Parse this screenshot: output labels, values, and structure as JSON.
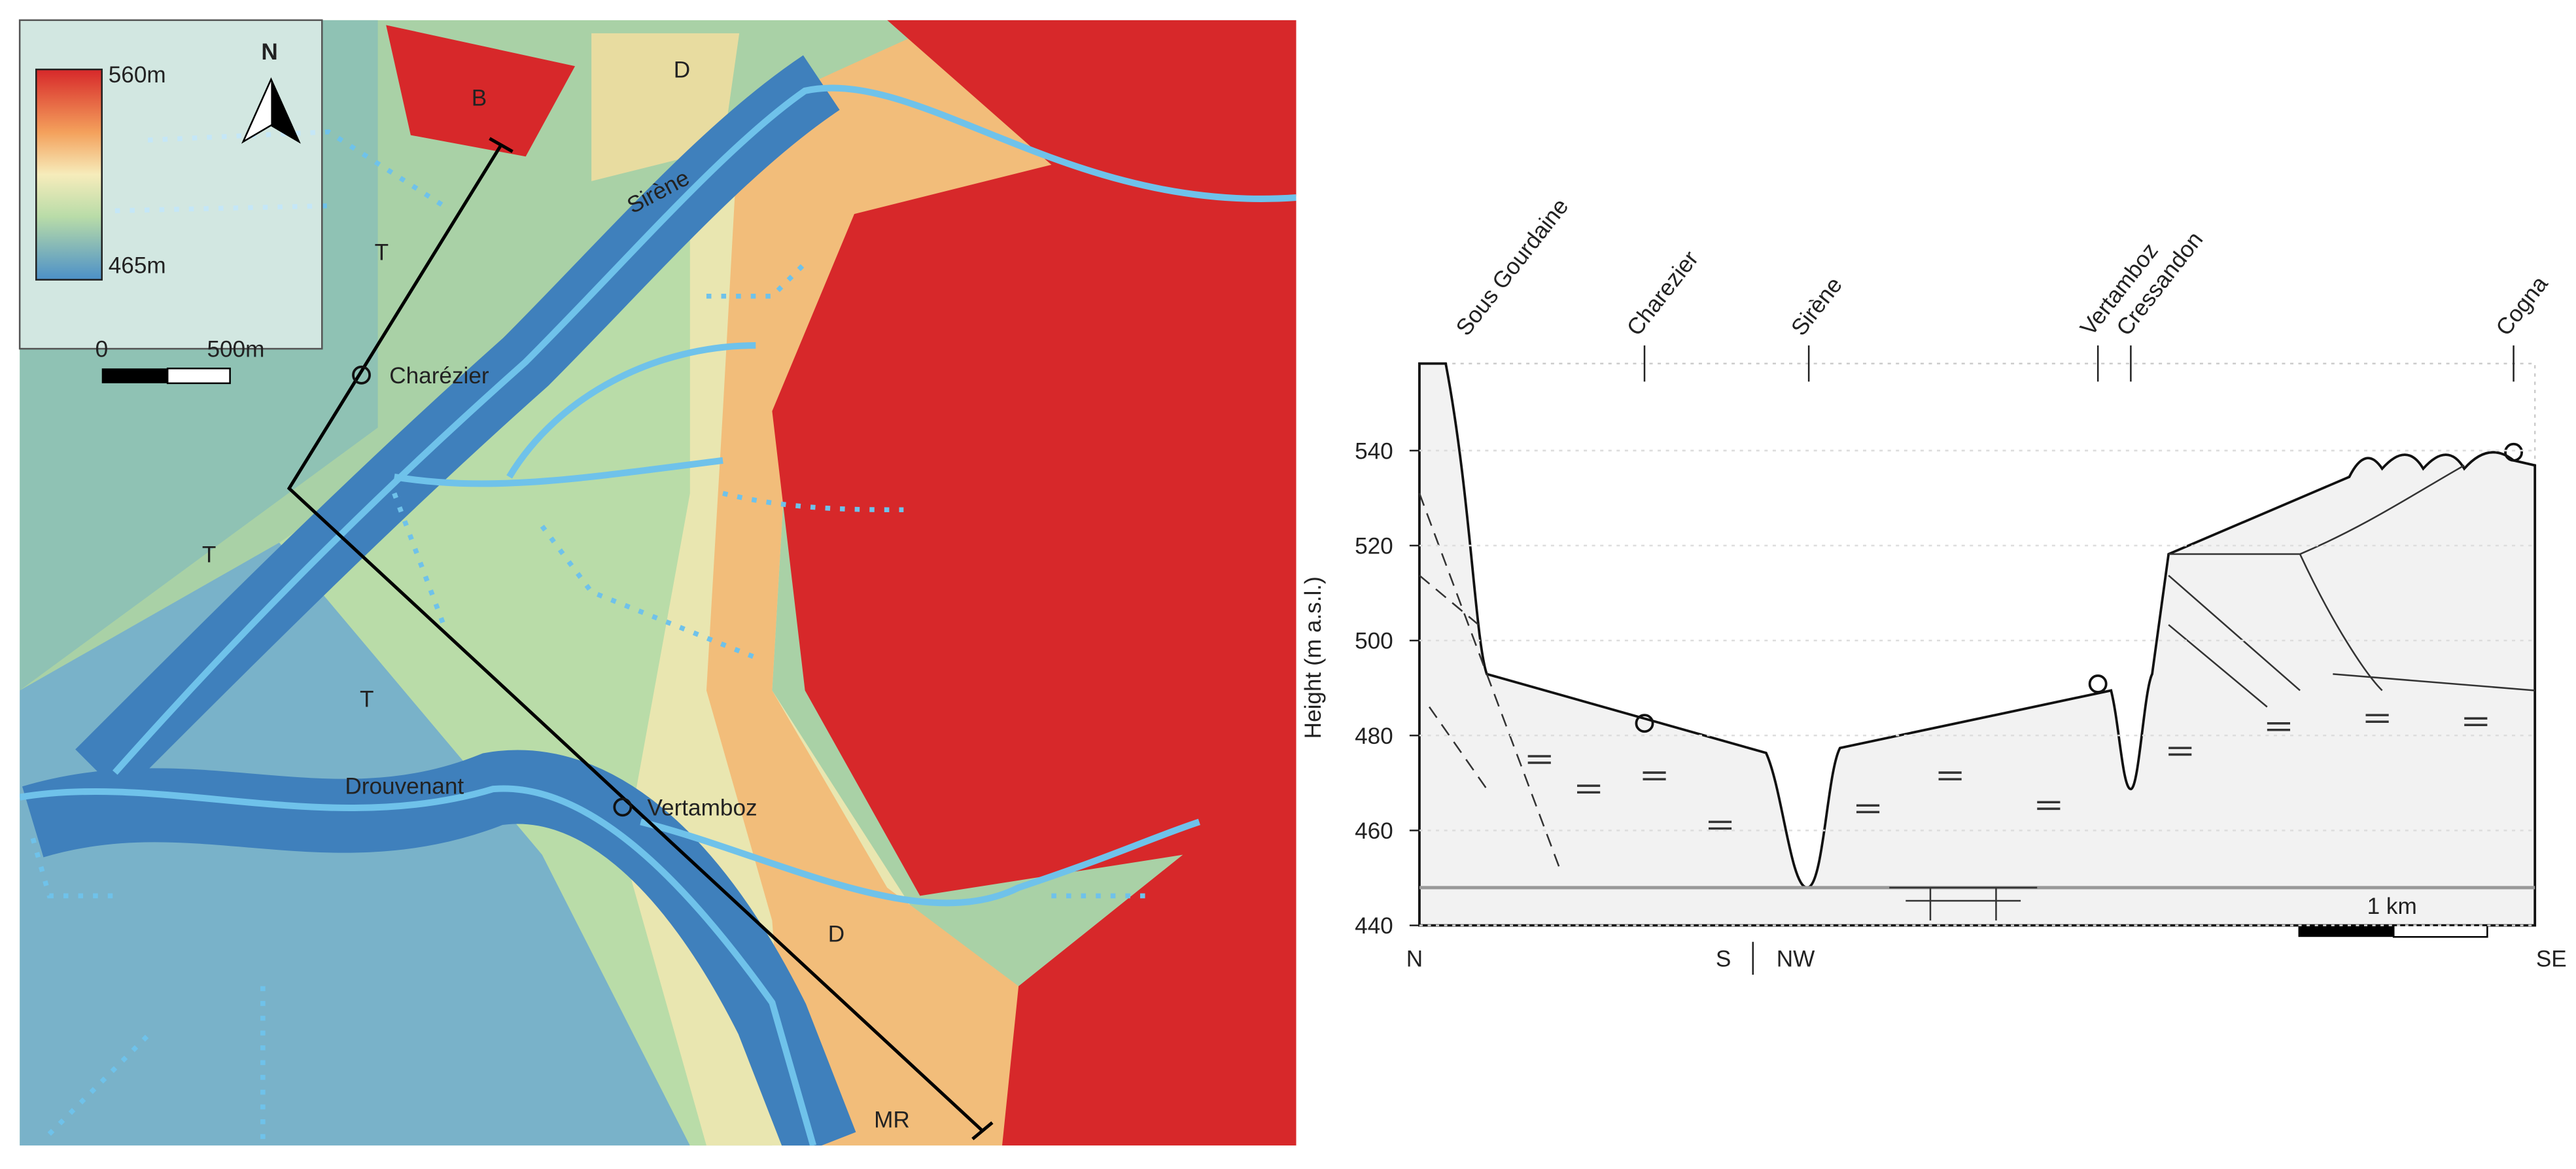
{
  "map": {
    "legend": {
      "max": "560m",
      "min": "465m"
    },
    "north": "N",
    "scale": {
      "start": "0",
      "end": "500m"
    },
    "labels": {
      "b": "B",
      "d_north": "D",
      "t_north": "T",
      "t_west": "T",
      "t_center": "T",
      "sirene": "Sirène",
      "charezier": "Charézier",
      "drouvenant": "Drouvenant",
      "vertamboz": "Vertamboz",
      "d_south": "D",
      "mr": "MR"
    }
  },
  "section": {
    "y_axis": {
      "label": "Height (m a.s.l.)",
      "ticks": [
        440,
        460,
        480,
        500,
        520,
        540
      ]
    },
    "places": {
      "sous_gourdaine": "Sous Gourdaine",
      "charezier": "Charezier",
      "sirene": "Sirène",
      "vertamboz": "Vertamboz",
      "cressandon": "Cressandon",
      "cogna": "Cogna"
    },
    "ends": {
      "n": "N",
      "s": "S",
      "nw": "NW",
      "se": "SE"
    },
    "scale": "1 km"
  }
}
